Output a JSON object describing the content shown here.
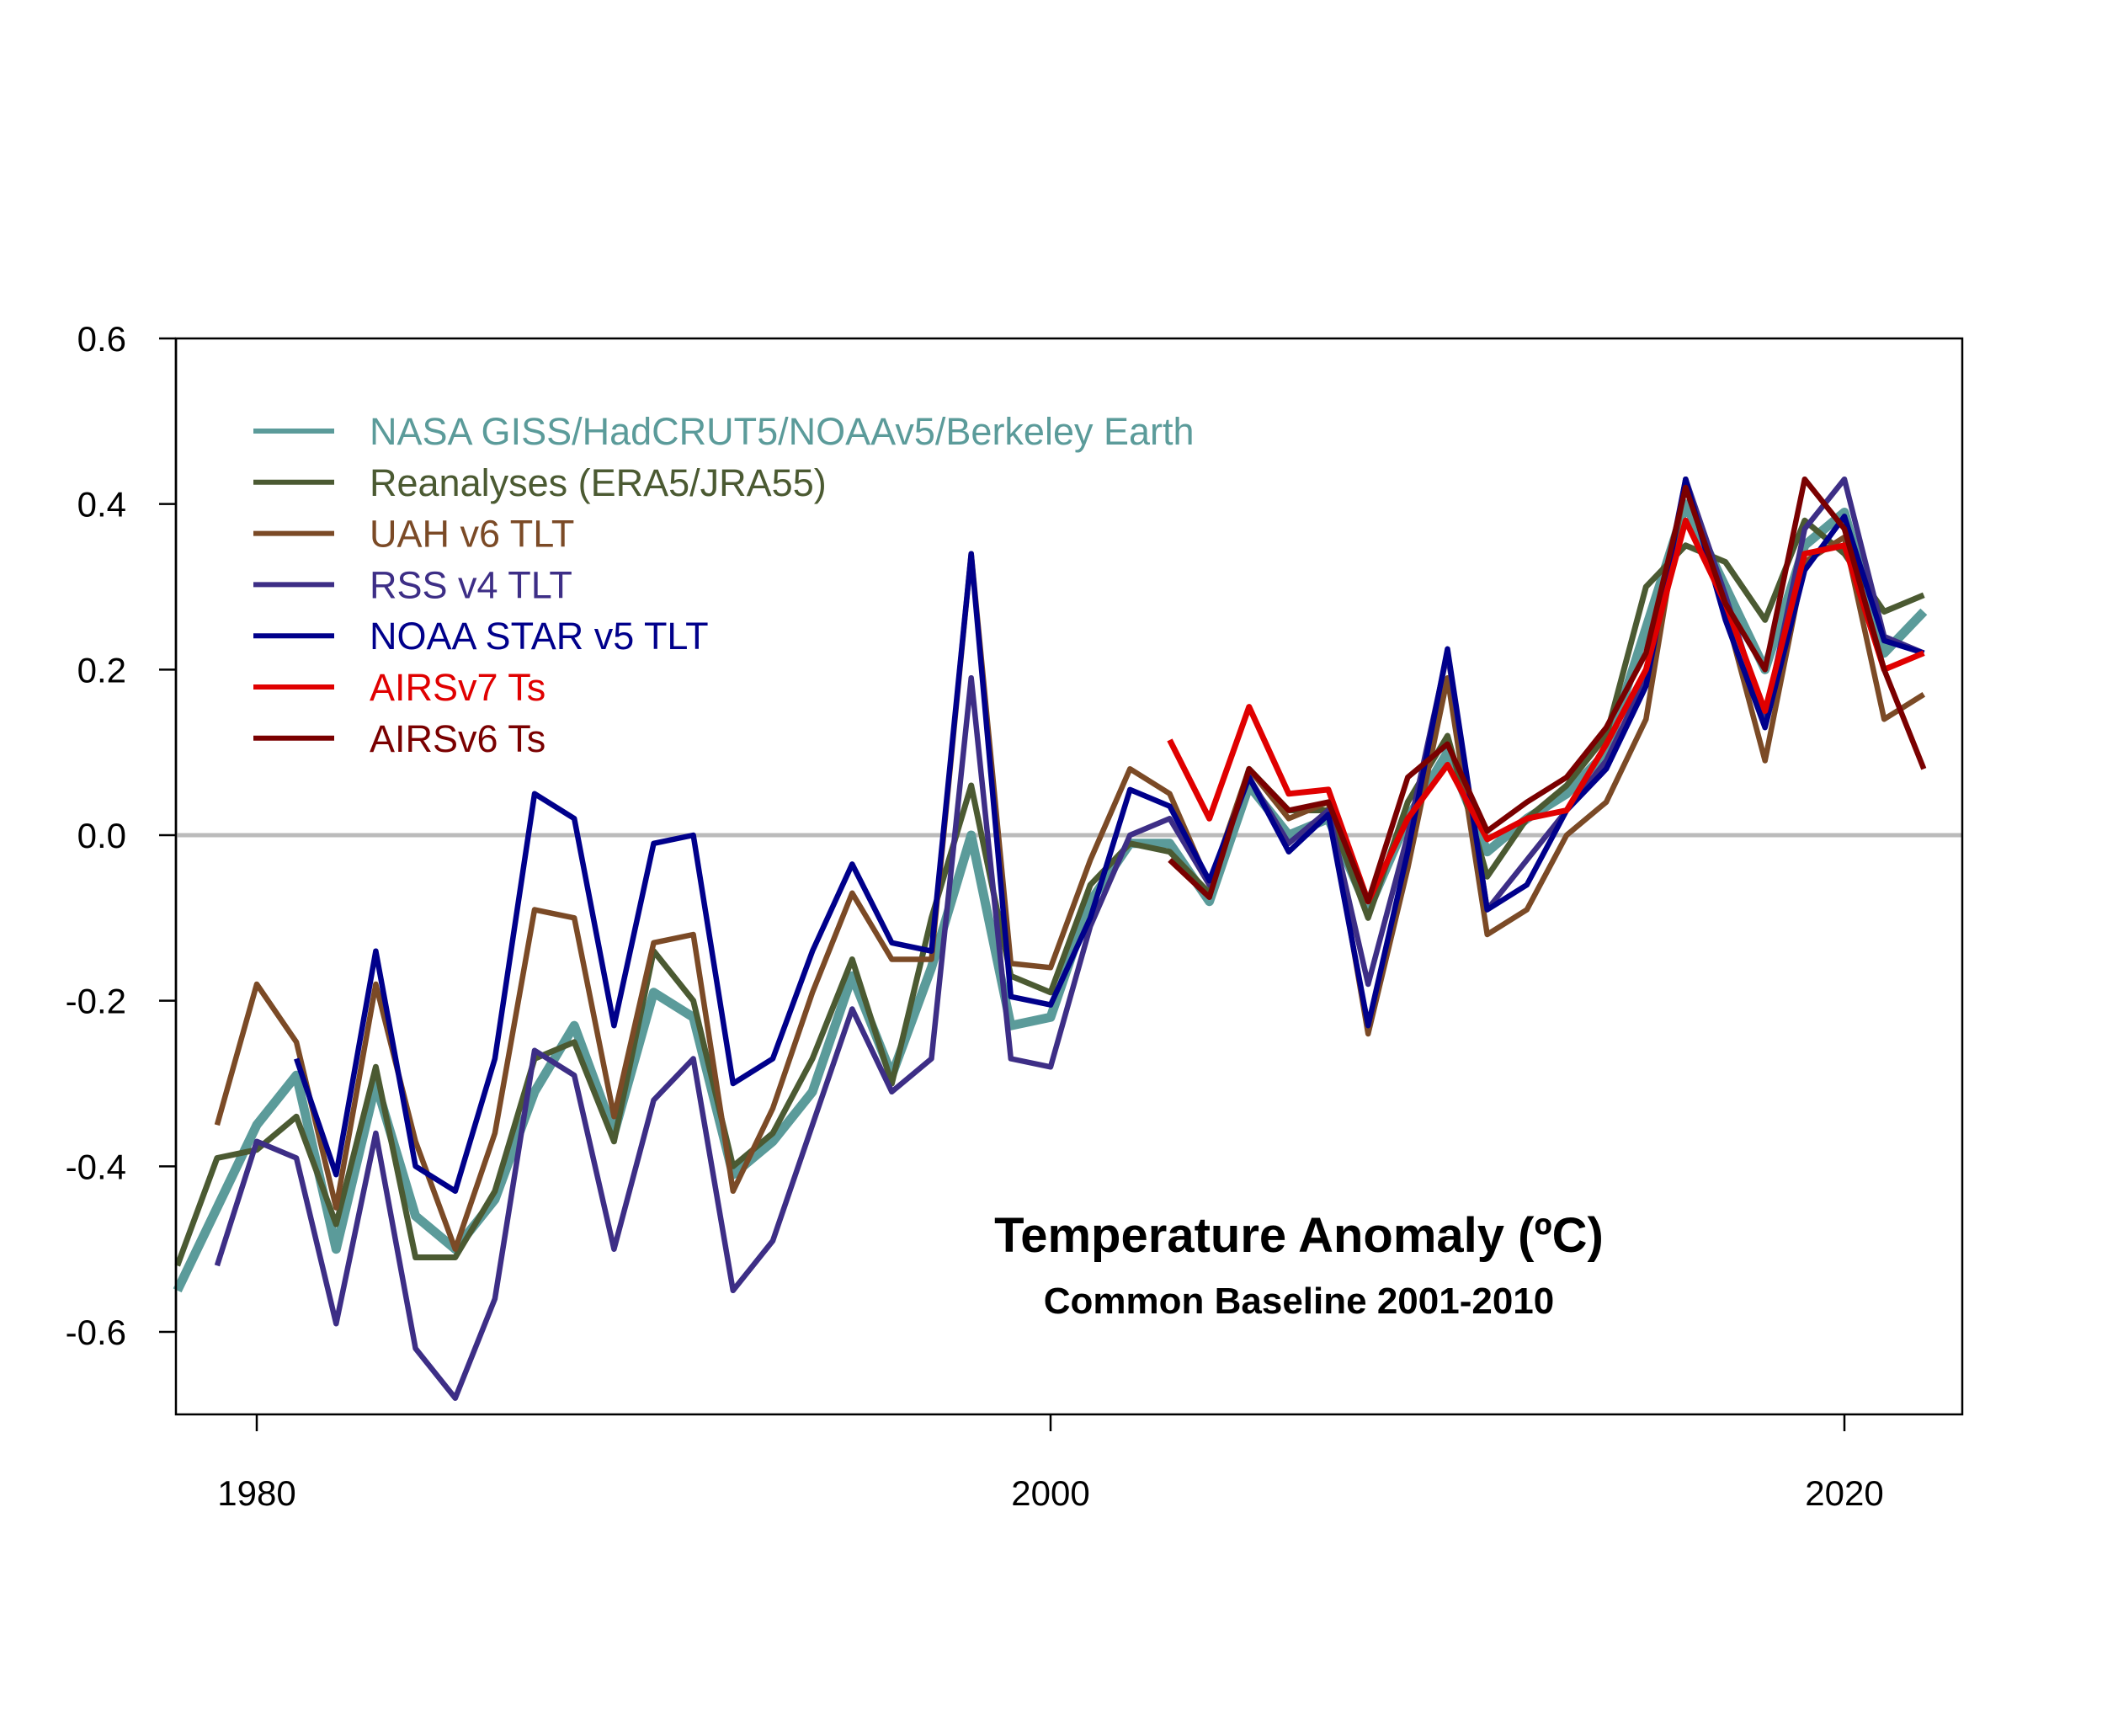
{
  "chart_data": {
    "type": "line",
    "title": "Temperature Anomaly (ºC)",
    "subtitle": "Common Baseline 2001-2010",
    "xlabel": "",
    "ylabel": "",
    "xlim": [
      1978,
      2023
    ],
    "ylim": [
      -0.7,
      0.6
    ],
    "x_ticks": [
      1980,
      2000,
      2020
    ],
    "y_ticks": [
      0.6,
      0.4,
      0.2,
      0.0,
      -0.2,
      -0.4,
      -0.6
    ],
    "y_tick_labels": [
      "0.6",
      "0.4",
      "0.2",
      "0.0",
      "-0.2",
      "-0.4",
      "-0.6"
    ],
    "x_tick_labels": [
      "1980",
      "2000",
      "2020"
    ],
    "reference_line": {
      "value": 0.0,
      "color": "#bbbbbb"
    },
    "legend_position": "top-left",
    "series": [
      {
        "name": "NASA GISS/HadCRUT5/NOAAv5/Berkeley Earth",
        "color": "#5b9b9a",
        "start": 1978,
        "values": [
          -0.55,
          -0.45,
          -0.35,
          -0.29,
          -0.5,
          -0.3,
          -0.46,
          -0.5,
          -0.44,
          -0.31,
          -0.23,
          -0.36,
          -0.19,
          -0.22,
          -0.41,
          -0.37,
          -0.31,
          -0.17,
          -0.29,
          -0.16,
          0.0,
          -0.23,
          -0.22,
          -0.08,
          -0.01,
          -0.01,
          -0.08,
          0.06,
          0.0,
          0.02,
          -0.09,
          0.02,
          0.1,
          -0.02,
          0.02,
          0.05,
          0.1,
          0.25,
          0.4,
          0.3,
          0.2,
          0.35,
          0.39,
          0.22,
          0.27
        ]
      },
      {
        "name": "Reanalyses (ERA5/JRA55)",
        "color": "#4b5a32",
        "start": 1978,
        "values": [
          -0.52,
          -0.39,
          -0.38,
          -0.34,
          -0.47,
          -0.28,
          -0.51,
          -0.51,
          -0.43,
          -0.27,
          -0.25,
          -0.37,
          -0.14,
          -0.2,
          -0.4,
          -0.36,
          -0.27,
          -0.15,
          -0.3,
          -0.1,
          0.06,
          -0.17,
          -0.19,
          -0.06,
          -0.01,
          -0.02,
          -0.07,
          0.08,
          0.03,
          0.03,
          -0.1,
          0.04,
          0.12,
          -0.05,
          0.02,
          0.06,
          0.12,
          0.3,
          0.35,
          0.33,
          0.26,
          0.38,
          0.34,
          0.27,
          0.29
        ]
      },
      {
        "name": "UAH v6 TLT",
        "color": "#7b4a26",
        "start": 1979,
        "values": [
          -0.35,
          -0.18,
          -0.25,
          -0.45,
          -0.18,
          -0.37,
          -0.5,
          -0.36,
          -0.09,
          -0.1,
          -0.34,
          -0.13,
          -0.12,
          -0.43,
          -0.33,
          -0.19,
          -0.07,
          -0.15,
          -0.15,
          0.34,
          -0.155,
          -0.16,
          -0.03,
          0.08,
          0.05,
          -0.06,
          0.08,
          0.02,
          0.04,
          -0.24,
          -0.04,
          0.19,
          -0.12,
          -0.09,
          0.0,
          0.04,
          0.14,
          0.43,
          0.27,
          0.09,
          0.33,
          0.36,
          0.14,
          0.17
        ]
      },
      {
        "name": "RSS v4 TLT",
        "color": "#3d2e86",
        "start": 1979,
        "values": [
          -0.52,
          -0.37,
          -0.39,
          -0.59,
          -0.36,
          -0.62,
          -0.68,
          -0.56,
          -0.26,
          -0.29,
          -0.5,
          -0.32,
          -0.27,
          -0.55,
          -0.49,
          -0.35,
          -0.21,
          -0.31,
          -0.27,
          0.19,
          -0.27,
          -0.28,
          -0.11,
          0.0,
          0.02,
          -0.06,
          0.07,
          -0.01,
          0.03,
          -0.18,
          0.0,
          0.22,
          -0.09,
          -0.03,
          0.03,
          0.09,
          0.19,
          0.43,
          0.29,
          0.14,
          0.37,
          0.43,
          0.24,
          0.22
        ]
      },
      {
        "name": "NOAA STAR v5 TLT",
        "color": "#00008b",
        "start": 1981,
        "values": [
          -0.27,
          -0.41,
          -0.14,
          -0.4,
          -0.43,
          -0.27,
          0.05,
          0.02,
          -0.23,
          -0.01,
          0.0,
          -0.3,
          -0.27,
          -0.14,
          -0.035,
          -0.13,
          -0.14,
          0.34,
          -0.195,
          -0.205,
          -0.1,
          0.055,
          0.035,
          -0.055,
          0.07,
          -0.02,
          0.025,
          -0.23,
          -0.02,
          0.225,
          -0.09,
          -0.06,
          0.03,
          0.08,
          0.18,
          0.43,
          0.26,
          0.13,
          0.32,
          0.385,
          0.235,
          0.22
        ]
      },
      {
        "name": "AIRSv7 Ts",
        "color": "#e00000",
        "start": 2003,
        "values": [
          0.115,
          0.02,
          0.155,
          0.05,
          0.055,
          -0.08,
          0.02,
          0.085,
          -0.005,
          0.02,
          0.03,
          0.11,
          0.2,
          0.38,
          0.28,
          0.15,
          0.34,
          0.35,
          0.2,
          0.22
        ]
      },
      {
        "name": "AIRSv6 Ts",
        "color": "#7a0000",
        "start": 2003,
        "values": [
          -0.03,
          -0.075,
          0.08,
          0.03,
          0.04,
          -0.08,
          0.07,
          0.11,
          0.005,
          0.04,
          0.07,
          0.13,
          0.22,
          0.42,
          0.28,
          0.2,
          0.43,
          0.37,
          0.2,
          0.08
        ]
      }
    ]
  }
}
